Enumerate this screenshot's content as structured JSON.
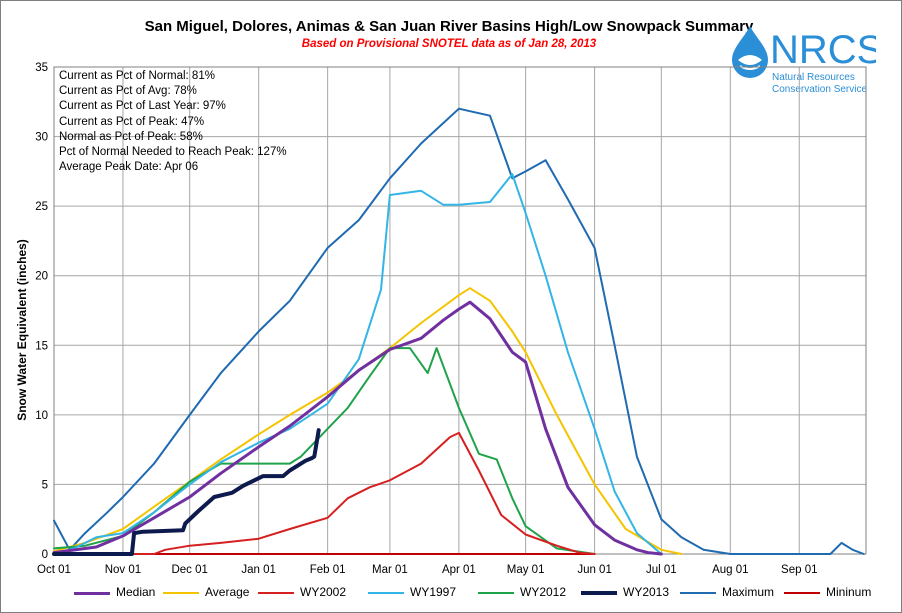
{
  "header": {
    "title": "San Miguel, Dolores, Animas & San Juan River Basins High/Low Snowpack Summary",
    "subtitle": "Based on Provisional SNOTEL data as of Jan 28, 2013"
  },
  "logo": {
    "name": "NRCS",
    "line1": "Natural Resources",
    "line2": "Conservation Service",
    "color": "#2a8fd6"
  },
  "stats": [
    "Current as Pct of Normal: 81%",
    "Current as Pct of Avg: 78%",
    "Current as Pct of Last Year: 97%",
    "Current as Pct of Peak: 47%",
    "Normal as Pct of Peak: 58%",
    "Pct of Normal Needed to Reach Peak: 127%",
    "Average Peak Date: Apr 06"
  ],
  "chart_data": {
    "type": "line",
    "title": "San Miguel, Dolores, Animas & San Juan River Basins High/Low Snowpack Summary",
    "subtitle": "Based on Provisional SNOTEL data as of Jan 28, 2013",
    "ylabel": "Snow Water Equivalent (inches)",
    "xlabel": "",
    "ylim": [
      0,
      35
    ],
    "yticks": [
      0,
      5,
      10,
      15,
      20,
      25,
      30,
      35
    ],
    "xlim": [
      "2012-10-01",
      "2013-09-30"
    ],
    "xtick_labels": [
      "Oct 01",
      "Nov 01",
      "Dec 01",
      "Jan 01",
      "Feb 01",
      "Mar 01",
      "Apr 01",
      "May 01",
      "Jun 01",
      "Jul 01",
      "Aug 01",
      "Sep 01"
    ],
    "xtick_dates": [
      "2012-10-01",
      "2012-11-01",
      "2012-12-01",
      "2013-01-01",
      "2013-02-01",
      "2013-03-01",
      "2013-04-01",
      "2013-05-01",
      "2013-06-01",
      "2013-07-01",
      "2013-08-01",
      "2013-09-01"
    ],
    "grid": true,
    "legend_position": "bottom",
    "series": [
      {
        "name": "Median",
        "color": "#7030a0",
        "width": 3,
        "x": [
          "2012-10-01",
          "2012-10-20",
          "2012-11-01",
          "2012-11-15",
          "2012-12-01",
          "2012-12-15",
          "2013-01-01",
          "2013-01-15",
          "2013-02-01",
          "2013-02-15",
          "2013-03-01",
          "2013-03-15",
          "2013-03-25",
          "2013-04-01",
          "2013-04-06",
          "2013-04-15",
          "2013-04-25",
          "2013-05-01",
          "2013-05-10",
          "2013-05-20",
          "2013-06-01",
          "2013-06-10",
          "2013-06-20",
          "2013-06-25",
          "2013-07-01"
        ],
        "y": [
          0.1,
          0.5,
          1.3,
          2.6,
          4.1,
          5.8,
          7.7,
          9.2,
          11.3,
          13.2,
          14.7,
          15.5,
          16.8,
          17.6,
          18.1,
          16.9,
          14.5,
          13.8,
          9.0,
          4.8,
          2.1,
          1.0,
          0.3,
          0.1,
          0.0
        ]
      },
      {
        "name": "Average",
        "color": "#f5c400",
        "width": 2,
        "x": [
          "2012-10-01",
          "2012-10-15",
          "2012-11-01",
          "2012-11-15",
          "2012-12-01",
          "2012-12-15",
          "2013-01-01",
          "2013-01-15",
          "2013-02-01",
          "2013-02-15",
          "2013-03-01",
          "2013-03-15",
          "2013-04-01",
          "2013-04-06",
          "2013-04-15",
          "2013-04-25",
          "2013-05-01",
          "2013-05-15",
          "2013-06-01",
          "2013-06-15",
          "2013-07-01",
          "2013-07-10"
        ],
        "y": [
          0.2,
          0.8,
          1.8,
          3.4,
          5.2,
          6.8,
          8.6,
          10.0,
          11.6,
          13.2,
          14.8,
          16.6,
          18.6,
          19.1,
          18.2,
          16.0,
          14.5,
          10.0,
          5.0,
          1.8,
          0.3,
          0.0
        ]
      },
      {
        "name": "WY2002",
        "color": "#d62020",
        "width": 2,
        "x": [
          "2012-10-01",
          "2012-11-15",
          "2012-11-20",
          "2012-12-01",
          "2012-12-15",
          "2013-01-01",
          "2013-01-15",
          "2013-02-01",
          "2013-02-10",
          "2013-02-20",
          "2013-03-01",
          "2013-03-15",
          "2013-03-28",
          "2013-04-01",
          "2013-04-10",
          "2013-04-20",
          "2013-05-01",
          "2013-05-15",
          "2013-05-25",
          "2013-06-01"
        ],
        "y": [
          0.0,
          0.0,
          0.3,
          0.6,
          0.8,
          1.1,
          1.8,
          2.6,
          4.0,
          4.8,
          5.3,
          6.5,
          8.4,
          8.7,
          6.0,
          2.8,
          1.4,
          0.6,
          0.1,
          0.0
        ]
      },
      {
        "name": "WY1997",
        "color": "#33b5e5",
        "width": 2,
        "x": [
          "2012-10-01",
          "2012-10-10",
          "2012-10-20",
          "2012-11-01",
          "2012-11-15",
          "2012-12-01",
          "2012-12-15",
          "2013-01-01",
          "2013-01-15",
          "2013-02-01",
          "2013-02-15",
          "2013-02-25",
          "2013-03-01",
          "2013-03-15",
          "2013-03-25",
          "2013-04-01",
          "2013-04-15",
          "2013-04-25",
          "2013-05-01",
          "2013-05-10",
          "2013-05-20",
          "2013-06-01",
          "2013-06-10",
          "2013-06-20",
          "2013-07-01"
        ],
        "y": [
          0.0,
          0.4,
          1.2,
          1.5,
          3.0,
          5.0,
          6.6,
          8.0,
          9.0,
          10.8,
          14.0,
          19.0,
          25.8,
          26.1,
          25.1,
          25.1,
          25.3,
          27.3,
          24.5,
          20.0,
          14.5,
          9.0,
          4.5,
          1.5,
          0.0
        ]
      },
      {
        "name": "WY2012",
        "color": "#1fa34a",
        "width": 2,
        "x": [
          "2012-10-01",
          "2012-10-15",
          "2012-11-01",
          "2012-11-15",
          "2012-12-01",
          "2012-12-15",
          "2013-01-01",
          "2013-01-15",
          "2013-01-20",
          "2013-02-01",
          "2013-02-10",
          "2013-02-20",
          "2013-03-01",
          "2013-03-10",
          "2013-03-18",
          "2013-03-22",
          "2013-04-01",
          "2013-04-10",
          "2013-04-18",
          "2013-04-25",
          "2013-05-01",
          "2013-05-15",
          "2013-06-01"
        ],
        "y": [
          0.4,
          0.6,
          1.3,
          3.0,
          5.2,
          6.5,
          6.5,
          6.5,
          7.0,
          9.0,
          10.5,
          12.8,
          14.8,
          14.8,
          13.0,
          14.8,
          10.5,
          7.2,
          6.8,
          4.0,
          2.0,
          0.4,
          0.0
        ]
      },
      {
        "name": "WY2013",
        "color": "#0d1a4d",
        "width": 4,
        "x": [
          "2012-10-01",
          "2012-11-05",
          "2012-11-06",
          "2012-11-10",
          "2012-11-28",
          "2012-11-29",
          "2012-12-03",
          "2012-12-05",
          "2012-12-12",
          "2012-12-20",
          "2012-12-25",
          "2013-01-03",
          "2013-01-12",
          "2013-01-15",
          "2013-01-22",
          "2013-01-25",
          "2013-01-26",
          "2013-01-28"
        ],
        "y": [
          0.0,
          0.0,
          1.5,
          1.6,
          1.7,
          2.2,
          2.8,
          3.1,
          4.1,
          4.4,
          4.9,
          5.6,
          5.6,
          6.0,
          6.7,
          6.9,
          7.0,
          8.9
        ]
      },
      {
        "name": "Maximum",
        "color": "#1f6ab0",
        "width": 2,
        "x": [
          "2012-10-01",
          "2012-10-08",
          "2012-10-15",
          "2012-10-25",
          "2012-11-01",
          "2012-11-15",
          "2012-12-01",
          "2012-12-15",
          "2013-01-01",
          "2013-01-15",
          "2013-02-01",
          "2013-02-15",
          "2013-03-01",
          "2013-03-15",
          "2013-04-01",
          "2013-04-15",
          "2013-04-25",
          "2013-05-01",
          "2013-05-10",
          "2013-05-20",
          "2013-06-01",
          "2013-06-10",
          "2013-06-20",
          "2013-07-01",
          "2013-07-10",
          "2013-07-20",
          "2013-08-01",
          "2013-09-15",
          "2013-09-20",
          "2013-09-25",
          "2013-09-30"
        ],
        "y": [
          2.4,
          0.3,
          1.5,
          3.0,
          4.1,
          6.5,
          10.0,
          13.0,
          16.0,
          18.2,
          22.0,
          24.0,
          27.0,
          29.5,
          32.0,
          31.5,
          27.0,
          27.5,
          28.3,
          25.5,
          22.0,
          15.0,
          7.0,
          2.5,
          1.2,
          0.3,
          0.0,
          0.0,
          0.8,
          0.3,
          0.0
        ]
      },
      {
        "name": "Mininum",
        "color": "#c00000",
        "width": 2,
        "x": [
          "2012-10-01",
          "2013-06-01"
        ],
        "y": [
          0.0,
          0.0
        ]
      }
    ]
  }
}
